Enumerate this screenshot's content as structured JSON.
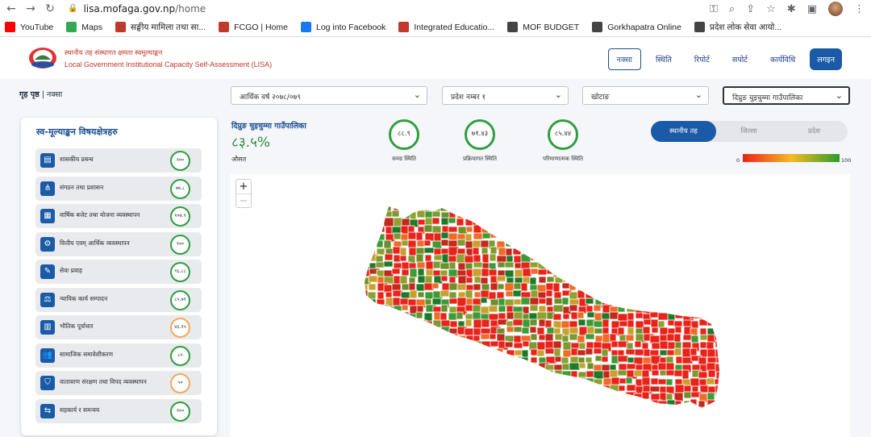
{
  "browser": {
    "url_domain": "lisa.mofaga.gov.np",
    "url_path": "/home",
    "bookmarks": [
      {
        "label": "YouTube",
        "color": "#ff0000"
      },
      {
        "label": "Maps",
        "color": "#34a853"
      },
      {
        "label": "सङ्घीय मामिला तथा सा...",
        "color": "#c0392b"
      },
      {
        "label": "FCGO | Home",
        "color": "#c0392b"
      },
      {
        "label": "Log into Facebook",
        "color": "#1877f2"
      },
      {
        "label": "Integrated Educatio...",
        "color": "#c0392b"
      },
      {
        "label": "MOF BUDGET",
        "color": "#444444"
      },
      {
        "label": "Gorkhapatra Online",
        "color": "#444444"
      },
      {
        "label": "प्रदेश लोक सेवा आयो...",
        "color": "#444444"
      }
    ]
  },
  "header": {
    "title_np": "स्थानीय तह संस्थागत क्षमता स्वमूल्याङ्कन",
    "title_en": "Local Government Institutional Capacity Self-Assessment (LISA)",
    "nav": [
      {
        "label": "नक्सा",
        "state": "active"
      },
      {
        "label": "स्थिति",
        "state": ""
      },
      {
        "label": "रिपोर्ट",
        "state": ""
      },
      {
        "label": "सपोर्ट",
        "state": ""
      },
      {
        "label": "कार्यविधि",
        "state": ""
      },
      {
        "label": "लगइन",
        "state": "login"
      }
    ]
  },
  "breadcrumb": {
    "home": "गृह पृष्ठ",
    "current": "नक्सा"
  },
  "filters": {
    "fiscal_year": "आर्थिक वर्ष २०७८/०७९",
    "province": "प्रदेश नम्बर १",
    "district": "खोटाङ",
    "municipality": "दिप्रुङ चुइचुम्मा गाउँपालिका"
  },
  "sidebar": {
    "title": "स्व-मूल्याङ्कन विषयक्षेत्रहरु",
    "items": [
      {
        "label": "शासकीय प्रबन्ध",
        "score": "१००",
        "icon": "document-icon",
        "glyph": "▤",
        "ring": "#2e9e3f"
      },
      {
        "label": "संगठन तथा प्रशासन",
        "score": "७७.८",
        "icon": "org-chart-icon",
        "glyph": "⋔",
        "ring": "#2e9e3f"
      },
      {
        "label": "वार्षिक बजेट तथा योजना व्यवस्थापन",
        "score": "१०७.१",
        "icon": "calendar-icon",
        "glyph": "▦",
        "ring": "#2e9e3f"
      },
      {
        "label": "वित्तीय एवम् आर्थिक व्यवस्थापन",
        "score": "१००",
        "icon": "finance-gear-icon",
        "glyph": "⚙",
        "ring": "#2e9e3f"
      },
      {
        "label": "सेवा प्रवाह",
        "score": "९६.८८",
        "icon": "wrench-icon",
        "glyph": "✎",
        "ring": "#2e9e3f"
      },
      {
        "label": "न्यायिक कार्य सम्पादन",
        "score": "८५.७१",
        "icon": "scales-icon",
        "glyph": "⚖",
        "ring": "#2e9e3f"
      },
      {
        "label": "भौतिक पूर्वाधार",
        "score": "४६.१५",
        "icon": "building-icon",
        "glyph": "▥",
        "ring": "#f4a85a"
      },
      {
        "label": "सामाजिक समावेशीकरण",
        "score": "८०",
        "icon": "people-icon",
        "glyph": "👥",
        "ring": "#2e9e3f"
      },
      {
        "label": "वातावरण संरक्षण तथा विपद व्यवस्थापन",
        "score": "५०",
        "icon": "shield-icon",
        "glyph": "⛉",
        "ring": "#f4a85a"
      },
      {
        "label": "सहकार्य र समन्वय",
        "score": "१००",
        "icon": "handshake-icon",
        "glyph": "⇆",
        "ring": "#2e9e3f"
      }
    ]
  },
  "summary": {
    "municipality": "दिप्रुङ चुइचुम्मा गाउँपालिका",
    "percent": "८३.५%",
    "average_label": "औसत",
    "stats": [
      {
        "value": "८८.९",
        "label": "समग्र स्थिति"
      },
      {
        "value": "७१.४३",
        "label": "प्रक्रियागत स्थिति"
      },
      {
        "value": "८५.४४",
        "label": "परिमाणात्मक स्थिति"
      }
    ]
  },
  "level_tabs": [
    {
      "label": "स्थानीय तह",
      "active": true
    },
    {
      "label": "जिल्ला",
      "active": false
    },
    {
      "label": "प्रदेश",
      "active": false
    }
  ],
  "scale": {
    "min": "0",
    "max": "100"
  },
  "map": {
    "zoom_in": "+",
    "zoom_out": "−"
  }
}
